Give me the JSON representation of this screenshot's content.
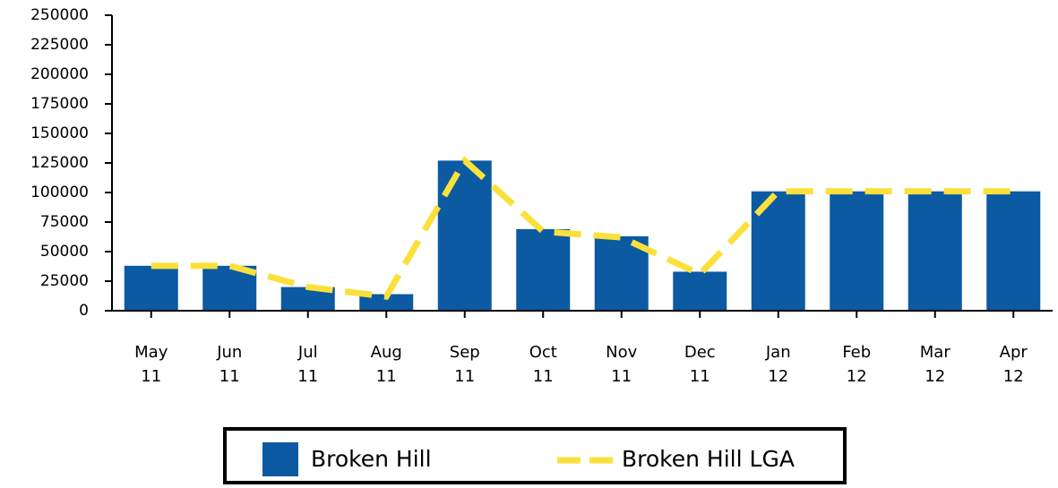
{
  "chart_data": {
    "type": "bar_line",
    "categories": [
      "May 11",
      "Jun 11",
      "Jul 11",
      "Aug 11",
      "Sep 11",
      "Oct 11",
      "Nov 11",
      "Dec 11",
      "Jan 12",
      "Feb 12",
      "Mar 12",
      "Apr 12"
    ],
    "series": [
      {
        "name": "Broken Hill",
        "type": "bar",
        "color": "#0b5aa2",
        "values": [
          38000,
          38000,
          20000,
          14000,
          127000,
          69000,
          63000,
          33000,
          101000,
          101000,
          101000,
          101000
        ]
      },
      {
        "name": "Broken Hill LGA",
        "type": "line",
        "dashed": true,
        "color": "#fbe03c",
        "values": [
          38000,
          38000,
          20000,
          12000,
          127000,
          67000,
          62000,
          31000,
          101000,
          101000,
          101000,
          101000
        ]
      }
    ],
    "ylim": [
      0,
      250000
    ],
    "yticks": [
      0,
      25000,
      50000,
      75000,
      100000,
      125000,
      150000,
      175000,
      200000,
      225000,
      250000
    ],
    "grid": false,
    "legend": "bottom"
  }
}
